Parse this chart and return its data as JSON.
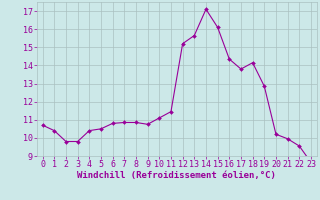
{
  "x": [
    0,
    1,
    2,
    3,
    4,
    5,
    6,
    7,
    8,
    9,
    10,
    11,
    12,
    13,
    14,
    15,
    16,
    17,
    18,
    19,
    20,
    21,
    22,
    23
  ],
  "y": [
    10.7,
    10.4,
    9.8,
    9.8,
    10.4,
    10.5,
    10.8,
    10.85,
    10.85,
    10.75,
    11.1,
    11.45,
    15.2,
    15.65,
    17.1,
    16.1,
    14.35,
    13.8,
    14.15,
    12.85,
    10.2,
    9.95,
    9.55,
    8.65
  ],
  "line_color": "#990099",
  "marker": "D",
  "marker_size": 2.0,
  "bg_color": "#cce8e8",
  "grid_color": "#aac0c0",
  "xlabel": "Windchill (Refroidissement éolien,°C)",
  "xlabel_color": "#990099",
  "xlabel_fontsize": 6.5,
  "tick_color": "#990099",
  "tick_fontsize": 6.0,
  "ylim": [
    9,
    17.5
  ],
  "xlim": [
    -0.5,
    23.5
  ],
  "yticks": [
    9,
    10,
    11,
    12,
    13,
    14,
    15,
    16,
    17
  ],
  "xticks": [
    0,
    1,
    2,
    3,
    4,
    5,
    6,
    7,
    8,
    9,
    10,
    11,
    12,
    13,
    14,
    15,
    16,
    17,
    18,
    19,
    20,
    21,
    22,
    23
  ]
}
